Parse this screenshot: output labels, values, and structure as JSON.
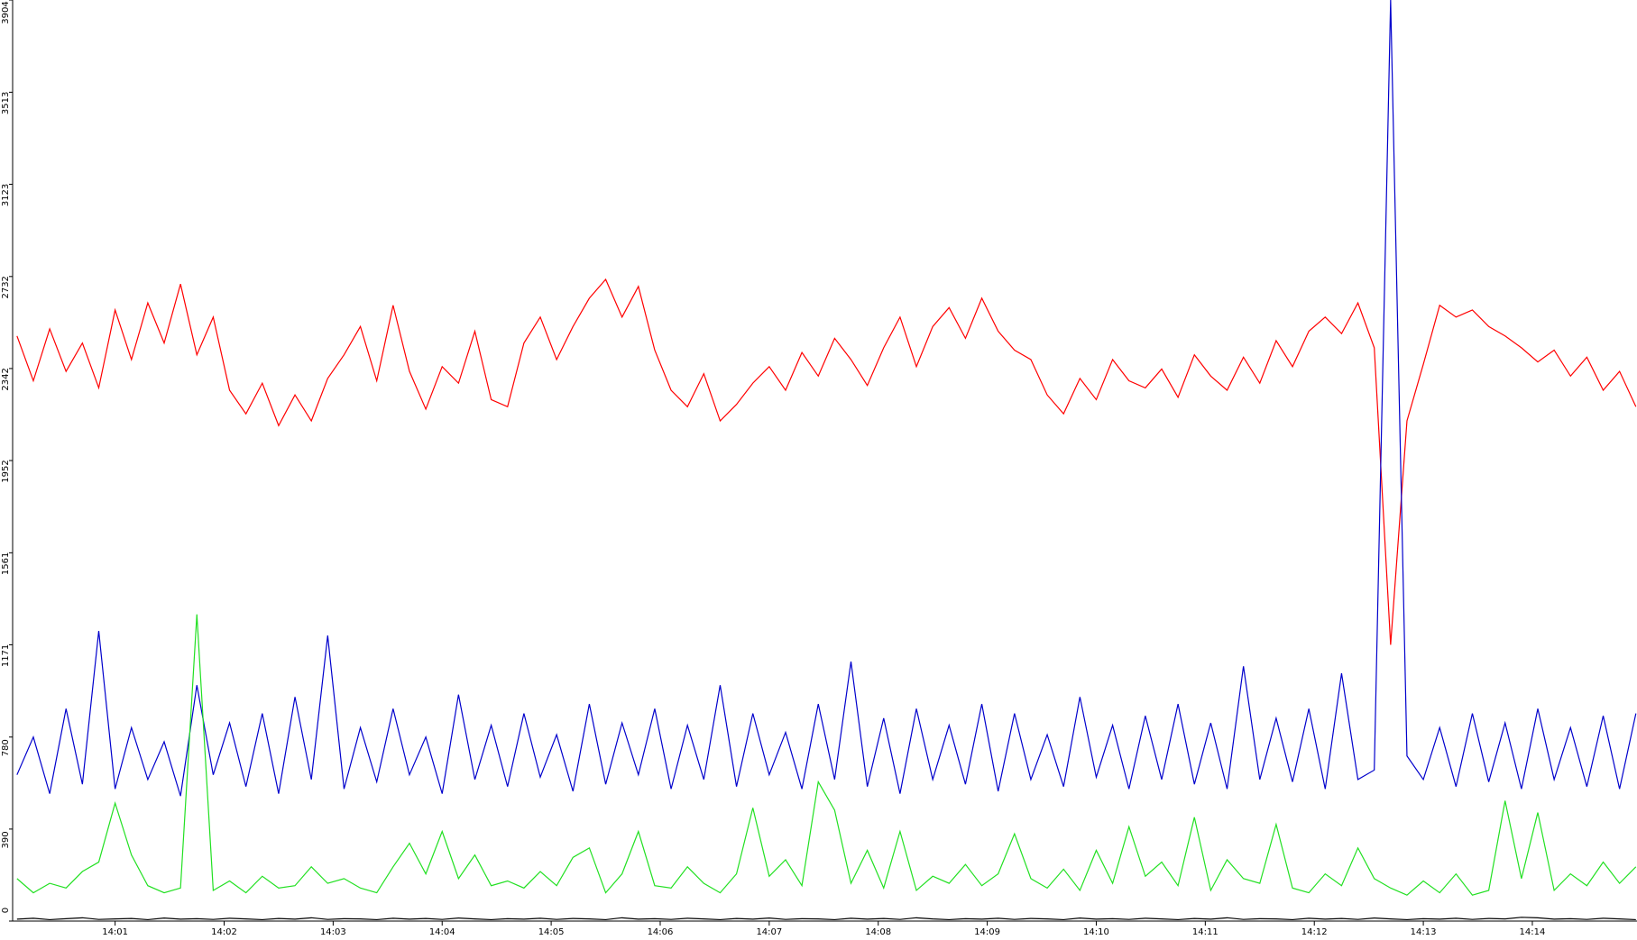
{
  "chart_data": {
    "type": "line",
    "xlim": [
      0.06,
      14.96
    ],
    "xticks": [
      {
        "value": 1,
        "label": "14:01"
      },
      {
        "value": 2,
        "label": "14:02"
      },
      {
        "value": 3,
        "label": "14:03"
      },
      {
        "value": 4,
        "label": "14:04"
      },
      {
        "value": 5,
        "label": "14:05"
      },
      {
        "value": 6,
        "label": "14:06"
      },
      {
        "value": 7,
        "label": "14:07"
      },
      {
        "value": 8,
        "label": "14:08"
      },
      {
        "value": 9,
        "label": "14:09"
      },
      {
        "value": 10,
        "label": "14:10"
      },
      {
        "value": 11,
        "label": "14:11"
      },
      {
        "value": 12,
        "label": "14:12"
      },
      {
        "value": 13,
        "label": "14:13"
      },
      {
        "value": 14,
        "label": "14:14"
      }
    ],
    "ylim": [
      0,
      3904
    ],
    "yticks": [
      0,
      390,
      780,
      1171,
      1561,
      1952,
      2342,
      2732,
      3123,
      3513,
      3904
    ],
    "grid": false,
    "x": [
      0.1,
      0.25,
      0.4,
      0.55,
      0.7,
      0.85,
      1,
      1.15,
      1.3,
      1.45,
      1.6,
      1.75,
      1.9,
      2.05,
      2.2,
      2.35,
      2.5,
      2.65,
      2.8,
      2.95,
      3.1,
      3.25,
      3.4,
      3.55,
      3.7,
      3.85,
      4,
      4.15,
      4.3,
      4.45,
      4.6,
      4.75,
      4.9,
      5.05,
      5.2,
      5.35,
      5.5,
      5.65,
      5.8,
      5.95,
      6.1,
      6.25,
      6.4,
      6.55,
      6.7,
      6.85,
      7,
      7.15,
      7.3,
      7.45,
      7.6,
      7.75,
      7.9,
      8.05,
      8.2,
      8.35,
      8.5,
      8.65,
      8.8,
      8.95,
      9.1,
      9.25,
      9.4,
      9.55,
      9.7,
      9.85,
      10,
      10.15,
      10.3,
      10.45,
      10.6,
      10.75,
      10.9,
      11.05,
      11.2,
      11.35,
      11.5,
      11.65,
      11.8,
      11.95,
      12.1,
      12.25,
      12.4,
      12.55,
      12.7,
      12.85,
      13,
      13.15,
      13.3,
      13.45,
      13.6,
      13.75,
      13.9,
      14.05,
      14.2,
      14.35,
      14.5,
      14.65,
      14.8,
      14.95
    ],
    "series": [
      {
        "color": "#ff0000",
        "values": [
          2480,
          2290,
          2510,
          2330,
          2450,
          2260,
          2590,
          2380,
          2620,
          2450,
          2700,
          2400,
          2560,
          2250,
          2150,
          2280,
          2100,
          2230,
          2120,
          2300,
          2400,
          2520,
          2290,
          2610,
          2330,
          2170,
          2350,
          2280,
          2500,
          2210,
          2180,
          2450,
          2560,
          2380,
          2520,
          2640,
          2720,
          2560,
          2690,
          2420,
          2250,
          2180,
          2320,
          2120,
          2190,
          2280,
          2350,
          2250,
          2410,
          2310,
          2470,
          2380,
          2270,
          2430,
          2560,
          2350,
          2520,
          2600,
          2470,
          2640,
          2500,
          2420,
          2380,
          2230,
          2150,
          2300,
          2210,
          2380,
          2290,
          2260,
          2340,
          2220,
          2400,
          2310,
          2250,
          2390,
          2280,
          2460,
          2350,
          2500,
          2560,
          2490,
          2620,
          2430,
          1171,
          2120,
          2360,
          2610,
          2560,
          2590,
          2520,
          2480,
          2430,
          2370,
          2420,
          2310,
          2390,
          2250,
          2330,
          2180
        ]
      },
      {
        "color": "#0000cc",
        "values": [
          620,
          780,
          540,
          900,
          580,
          1230,
          560,
          820,
          600,
          760,
          530,
          1000,
          620,
          840,
          570,
          880,
          540,
          950,
          600,
          1210,
          560,
          820,
          590,
          900,
          620,
          780,
          540,
          960,
          600,
          830,
          570,
          880,
          610,
          790,
          550,
          920,
          580,
          840,
          620,
          900,
          560,
          830,
          600,
          1000,
          570,
          880,
          620,
          800,
          560,
          920,
          600,
          1100,
          570,
          860,
          540,
          900,
          600,
          830,
          580,
          920,
          550,
          880,
          600,
          790,
          570,
          950,
          610,
          830,
          560,
          870,
          600,
          920,
          580,
          840,
          560,
          1080,
          600,
          860,
          590,
          900,
          560,
          1050,
          600,
          640,
          3904,
          700,
          600,
          820,
          570,
          880,
          590,
          840,
          560,
          900,
          600,
          820,
          570,
          870,
          560,
          880
        ]
      },
      {
        "color": "#22e022",
        "values": [
          180,
          120,
          160,
          140,
          210,
          250,
          500,
          280,
          150,
          120,
          140,
          1300,
          130,
          170,
          120,
          190,
          140,
          150,
          230,
          160,
          180,
          140,
          120,
          230,
          330,
          200,
          380,
          180,
          280,
          150,
          170,
          140,
          210,
          150,
          270,
          310,
          120,
          200,
          380,
          150,
          140,
          230,
          160,
          120,
          200,
          480,
          190,
          260,
          150,
          590,
          470,
          160,
          300,
          140,
          380,
          130,
          190,
          160,
          240,
          150,
          200,
          370,
          180,
          140,
          220,
          130,
          300,
          160,
          400,
          190,
          250,
          150,
          440,
          130,
          260,
          180,
          160,
          410,
          140,
          120,
          200,
          150,
          310,
          180,
          140,
          110,
          170,
          120,
          200,
          110,
          130,
          510,
          180,
          460,
          130,
          200,
          150,
          250,
          160,
          230
        ]
      },
      {
        "color": "#000000",
        "values": [
          8,
          12,
          6,
          10,
          14,
          7,
          9,
          11,
          6,
          13,
          8,
          10,
          7,
          12,
          9,
          6,
          11,
          8,
          14,
          7,
          10,
          9,
          6,
          12,
          8,
          11,
          7,
          13,
          9,
          6,
          10,
          8,
          12,
          7,
          11,
          9,
          6,
          14,
          8,
          10,
          7,
          12,
          9,
          6,
          11,
          8,
          13,
          7,
          10,
          9,
          6,
          12,
          8,
          11,
          7,
          14,
          9,
          6,
          10,
          8,
          12,
          7,
          11,
          9,
          6,
          13,
          8,
          10,
          7,
          12,
          9,
          6,
          11,
          8,
          14,
          7,
          10,
          9,
          6,
          12,
          8,
          11,
          7,
          13,
          9,
          6,
          10,
          8,
          12,
          7,
          11,
          9,
          16,
          14,
          8,
          10,
          7,
          12,
          9,
          6
        ]
      }
    ]
  }
}
